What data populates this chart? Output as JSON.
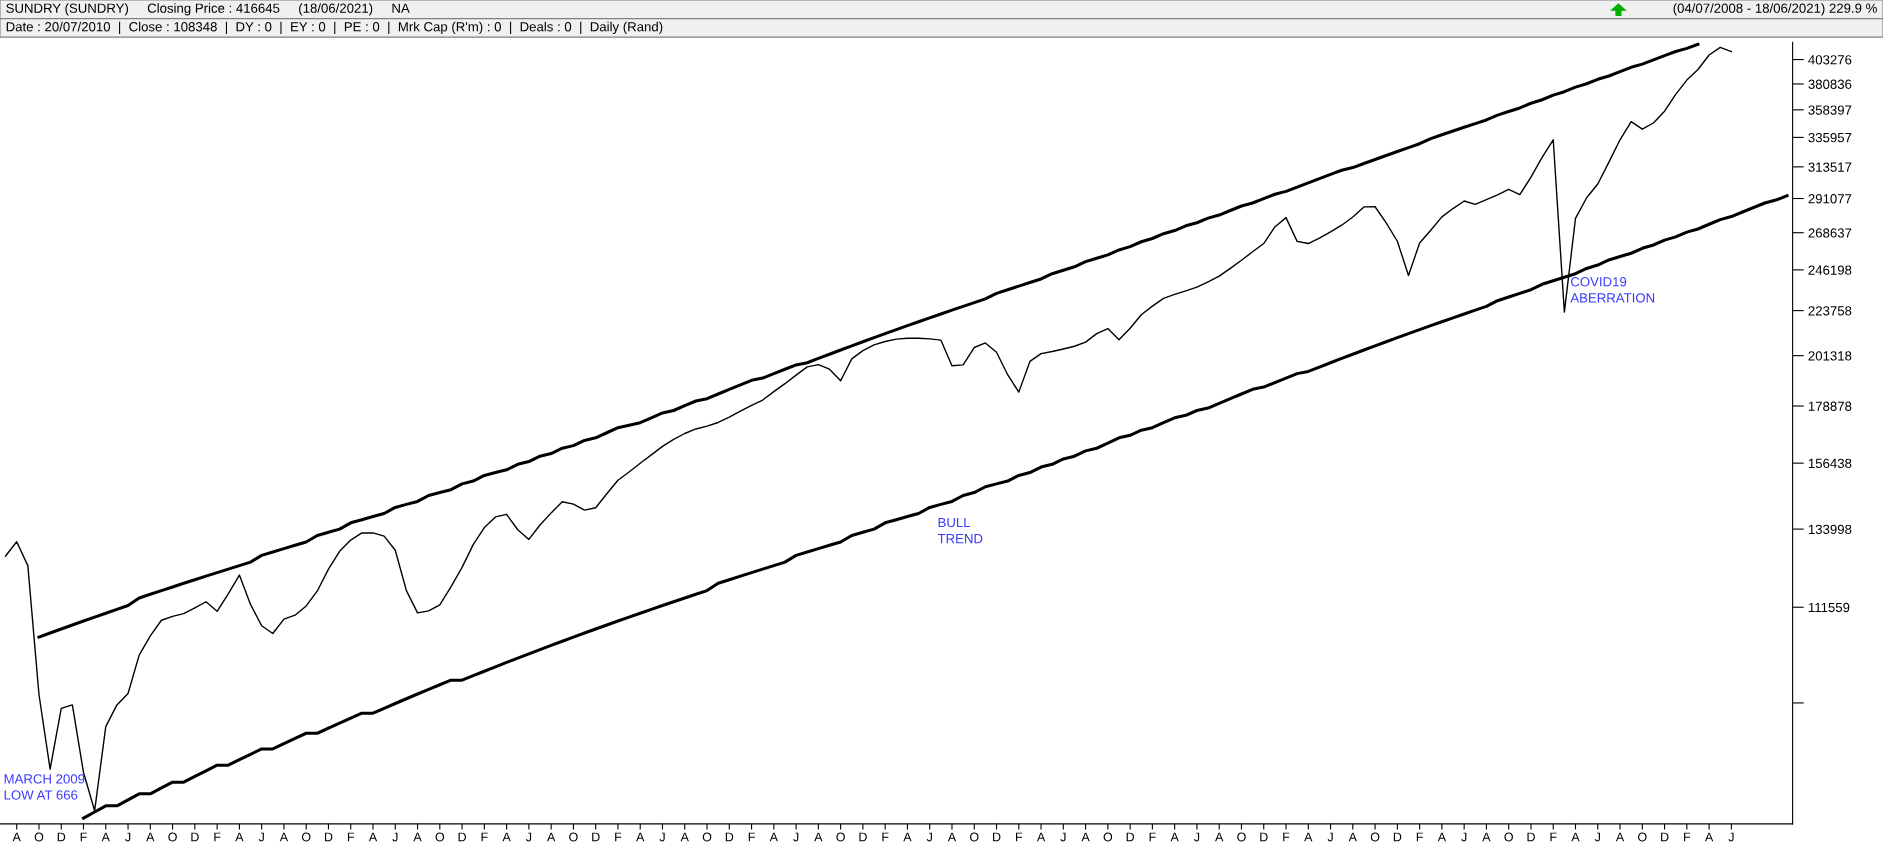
{
  "chart_data": {
    "type": "line",
    "title": "SUNDRY (SUNDRY)     Closing Price : 416645     (18/06/2021)     NA",
    "subtitle": "Date : 20/07/2010  |  Close : 108348  |  DY : 0  |  EY : 0  |  PE : 0  |  Mrk Cap (R'm) : 0  |  Deals : 0  |  Daily (Rand)",
    "annotations": [
      "(04/07/2008 - 18/06/2021) 229.9 %",
      "MARCH 2009\nLOW AT 666",
      "BULL\nTREND",
      "COVID19\nABERRATION"
    ],
    "categories": [
      null,
      "A",
      null,
      "O",
      null,
      "D",
      null,
      "F",
      null,
      "A",
      null,
      "J",
      null,
      "A",
      null,
      "O",
      null,
      "D",
      null,
      "F",
      null,
      "A",
      null,
      "J",
      null,
      "A",
      null,
      "O",
      null,
      "D",
      null,
      "F",
      null,
      "A",
      null,
      "J",
      null,
      "A",
      null,
      "O",
      null,
      "D",
      null,
      "F",
      null,
      "A",
      null,
      "J",
      null,
      "A",
      null,
      "O",
      null,
      "D",
      null,
      "F",
      null,
      "A",
      null,
      "J",
      null,
      "A",
      null,
      "O",
      null,
      "D",
      null,
      "F",
      null,
      "A",
      null,
      "J",
      null,
      "A",
      null,
      "O",
      null,
      "D",
      null,
      "F",
      null,
      "A",
      null,
      "J",
      null,
      "A",
      null,
      "O",
      null,
      "D",
      null,
      "F",
      null,
      "A",
      null,
      "J",
      null,
      "A",
      null,
      "O",
      null,
      "D",
      null,
      "F",
      null,
      "A",
      null,
      "J",
      null,
      "A",
      null,
      "O",
      null,
      "D",
      null,
      "F",
      null,
      "A",
      null,
      "J",
      null,
      "A",
      null,
      "O",
      null,
      "D",
      null,
      "F",
      null,
      "A",
      null,
      "J",
      null,
      "A",
      null,
      "O",
      null,
      "D",
      null,
      "F",
      null,
      "A",
      null,
      "J",
      null,
      "A",
      null,
      "O",
      null,
      "D",
      null,
      "F",
      null,
      "A",
      null,
      "J",
      null,
      null,
      null,
      null,
      null
    ],
    "ylim": [
      67100,
      420000
    ],
    "log": "y",
    "grid": false,
    "marker": "none",
    "line_style": "solid",
    "yticks": [
      403276,
      380836,
      358397,
      335957,
      313517,
      291077,
      268637,
      246198,
      223758,
      201318,
      178878,
      156438,
      133998,
      111559,
      {
        "value": 89119,
        "label": null
      }
    ],
    "series": [
      {
        "color": "#000000",
        "values": [
          125800,
          130100,
          123000,
          90900,
          76300,
          88000,
          88700,
          75700,
          69200,
          84300,
          88700,
          91100,
          99700,
          104300,
          108200,
          109200,
          109900,
          111400,
          113000,
          110500,
          115100,
          120300,
          112300,
          106800,
          104900,
          108500,
          109500,
          111900,
          115900,
          122000,
          127200,
          130600,
          132800,
          132800,
          131800,
          127500,
          116000,
          110100,
          110600,
          112200,
          117000,
          122500,
          129200,
          134500,
          137900,
          138700,
          133800,
          130800,
          135300,
          139200,
          142900,
          142100,
          140100,
          140900,
          145600,
          150300,
          153200,
          156400,
          159500,
          162700,
          165400,
          167700,
          169500,
          170600,
          172100,
          174300,
          176700,
          179100,
          181400,
          185000,
          188500,
          192300,
          196100,
          197100,
          195000,
          189800,
          199800,
          203700,
          206500,
          208100,
          209300,
          209700,
          209700,
          209400,
          208800,
          196600,
          197000,
          205200,
          207400,
          202900,
          192500,
          184800,
          198600,
          202300,
          203300,
          204500,
          205800,
          207800,
          212000,
          214500,
          209000,
          214700,
          221600,
          226100,
          230300,
          232400,
          234400,
          236400,
          239400,
          242600,
          247100,
          251800,
          256900,
          261900,
          272300,
          278300,
          263200,
          261900,
          265300,
          269200,
          273400,
          278700,
          285400,
          285500,
          274900,
          263300,
          243000,
          262200,
          270200,
          278800,
          284300,
          289400,
          287100,
          290300,
          293500,
          297400,
          293700,
          306100,
          320600,
          334100,
          223000,
          277800,
          291600,
          301200,
          317000,
          334100,
          348600,
          342500,
          347500,
          357300,
          371700,
          384300,
          394000,
          407600,
          415000,
          410800,
          null,
          null,
          null,
          null,
          null
        ]
      },
      {
        "color": "#000000",
        "values": [
          null,
          null,
          null,
          104000,
          105000,
          106000,
          107000,
          108000,
          109000,
          110000,
          111000,
          112000,
          114000,
          115000,
          116000,
          117000,
          118000,
          119000,
          120000,
          121000,
          122000,
          123000,
          124000,
          126000,
          127000,
          128000,
          129000,
          130000,
          132000,
          133000,
          134000,
          136000,
          137000,
          138000,
          139000,
          141000,
          142000,
          143000,
          145000,
          146000,
          147000,
          149000,
          150000,
          152000,
          153000,
          154000,
          156000,
          157000,
          159000,
          160000,
          162000,
          163000,
          165000,
          166000,
          168000,
          170000,
          171000,
          172000,
          174000,
          176000,
          177000,
          179000,
          181000,
          182000,
          184000,
          186000,
          188000,
          190000,
          191000,
          193000,
          195000,
          197000,
          198000,
          200000,
          202000,
          204000,
          206000,
          208000,
          210000,
          212000,
          214000,
          216000,
          218000,
          220000,
          222000,
          224000,
          226000,
          228000,
          230000,
          233000,
          235000,
          237000,
          239000,
          241000,
          244000,
          246000,
          248000,
          251000,
          253000,
          255000,
          258000,
          260000,
          263000,
          265000,
          268000,
          270000,
          273000,
          275000,
          278000,
          280000,
          283000,
          286000,
          288000,
          291000,
          294000,
          296000,
          299000,
          302000,
          305000,
          308000,
          311000,
          313000,
          316000,
          319000,
          322000,
          325000,
          328000,
          331000,
          335000,
          338000,
          341000,
          344000,
          347000,
          350000,
          354000,
          357000,
          360000,
          364000,
          367000,
          371000,
          374000,
          378000,
          381000,
          385000,
          388000,
          392000,
          396000,
          399000,
          403000,
          407000,
          411000,
          414000,
          418000,
          null,
          null,
          null,
          null,
          null,
          null,
          null,
          null
        ]
      },
      {
        "color": "#000000",
        "values": [
          null,
          null,
          null,
          null,
          null,
          null,
          null,
          68000,
          69000,
          70000,
          70000,
          71000,
          72000,
          72000,
          73000,
          74000,
          74000,
          75000,
          76000,
          77000,
          77000,
          78000,
          79000,
          80000,
          80000,
          81000,
          82000,
          83000,
          83000,
          84000,
          85000,
          86000,
          87000,
          87000,
          88000,
          89000,
          90000,
          91000,
          92000,
          93000,
          94000,
          94000,
          95000,
          96000,
          97000,
          98000,
          99000,
          100000,
          101000,
          102000,
          103000,
          104000,
          105000,
          106000,
          107000,
          108000,
          109000,
          110000,
          111000,
          112000,
          113000,
          114000,
          115000,
          116000,
          118000,
          119000,
          120000,
          121000,
          122000,
          123000,
          124000,
          126000,
          127000,
          128000,
          129000,
          130000,
          132000,
          133000,
          134000,
          136000,
          137000,
          138000,
          139000,
          141000,
          142000,
          143000,
          145000,
          146000,
          148000,
          149000,
          150000,
          152000,
          153000,
          155000,
          156000,
          158000,
          159000,
          161000,
          162000,
          164000,
          166000,
          167000,
          169000,
          170000,
          172000,
          174000,
          175000,
          177000,
          178000,
          180000,
          182000,
          184000,
          186000,
          187000,
          189000,
          191000,
          193000,
          194000,
          196000,
          198000,
          200000,
          202000,
          204000,
          206000,
          208000,
          210000,
          212000,
          214000,
          216000,
          218000,
          220000,
          222000,
          224000,
          226000,
          229000,
          231000,
          233000,
          235000,
          238000,
          240000,
          242000,
          244000,
          247000,
          249000,
          252000,
          254000,
          256000,
          259000,
          261000,
          264000,
          266000,
          269000,
          271000,
          274000,
          277000,
          279000,
          282000,
          285000,
          288000,
          290000,
          293000
        ]
      }
    ]
  }
}
